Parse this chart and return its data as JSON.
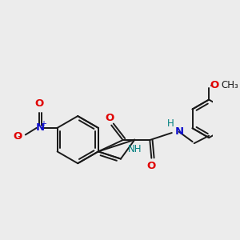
{
  "bg_color": "#ececec",
  "bond_color": "#1a1a1a",
  "bond_width": 1.4,
  "atom_colors": {
    "O": "#e00000",
    "N_blue": "#1010cc",
    "N_teal": "#008080",
    "H_teal": "#008080"
  },
  "font_size": 8.5,
  "figsize": [
    3.0,
    3.0
  ],
  "dpi": 100,
  "xlim": [
    -2.8,
    3.6
  ],
  "ylim": [
    -3.2,
    1.8
  ]
}
